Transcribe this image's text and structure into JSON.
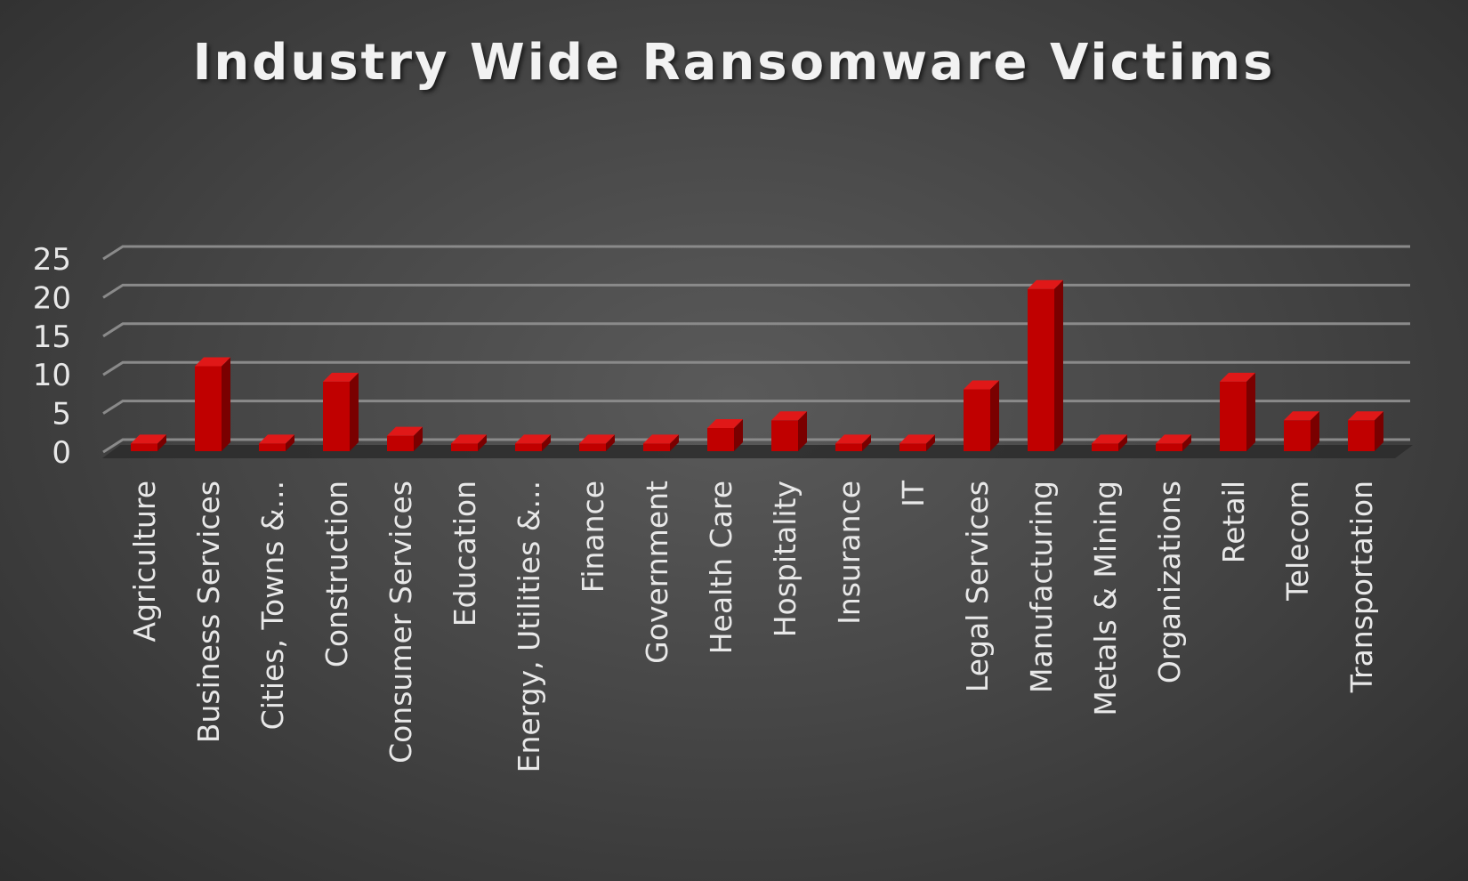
{
  "chart_data": {
    "type": "bar",
    "title": "Industry Wide Ransomware Victims",
    "xlabel": "",
    "ylabel": "",
    "ylim": [
      0,
      25
    ],
    "yticks": [
      0,
      5,
      10,
      15,
      20,
      25
    ],
    "grid": true,
    "legend": "none",
    "style": "3d-column",
    "bar_color": "#c00000",
    "categories": [
      "Agriculture",
      "Business Services",
      "Cities, Towns &...",
      "Construction",
      "Consumer Services",
      "Education",
      "Energy, Utilities &...",
      "Finance",
      "Government",
      "Health Care",
      "Hospitality",
      "Insurance",
      "IT",
      "Legal Services",
      "Manufacturing",
      "Metals & Mining",
      "Organizations",
      "Retail",
      "Telecom",
      "Transportation"
    ],
    "values": [
      1,
      11,
      1,
      9,
      2,
      1,
      1,
      1,
      1,
      3,
      4,
      1,
      1,
      8,
      21,
      1,
      1,
      9,
      4,
      4
    ]
  }
}
